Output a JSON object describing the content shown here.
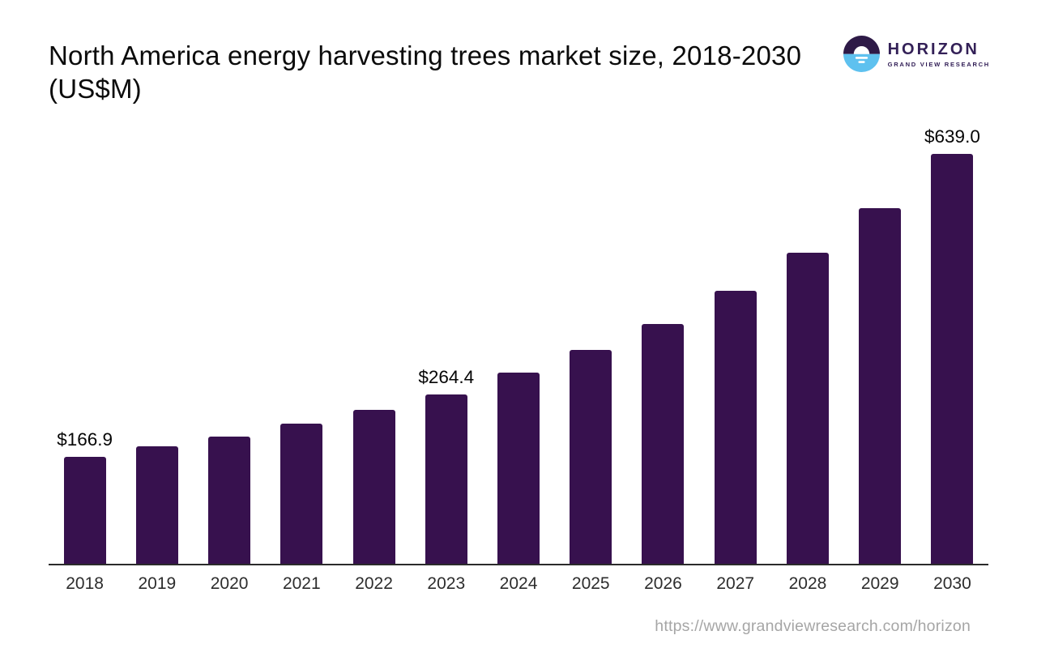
{
  "header": {
    "title": "North America energy harvesting trees market size, 2018-2030 (US$M)",
    "logo": {
      "brand": "HORIZON",
      "subtitle": "GRAND VIEW RESEARCH",
      "icon_colors": {
        "top_half": "#2e1a47",
        "bottom_half": "#5ec1ef",
        "sun": "#ffffff"
      }
    }
  },
  "chart_data": {
    "type": "bar",
    "title": "North America energy harvesting trees market size, 2018-2030 (US$M)",
    "categories": [
      "2018",
      "2019",
      "2020",
      "2021",
      "2022",
      "2023",
      "2024",
      "2025",
      "2026",
      "2027",
      "2028",
      "2029",
      "2030"
    ],
    "values": [
      166.9,
      183.0,
      198.0,
      218.0,
      239.5,
      264.4,
      297.5,
      334.0,
      374.0,
      426.0,
      485.0,
      554.0,
      639.0
    ],
    "data_labels": {
      "2018": "$166.9",
      "2023": "$264.4",
      "2030": "$639.0"
    },
    "labels_shown_for": [
      "2018",
      "2023",
      "2030"
    ],
    "bar_color": "#37114e",
    "axis_line_color": "#2b2b2b",
    "xlabel": "",
    "ylabel": "",
    "ylim": [
      0,
      660
    ],
    "grid": false,
    "legend_position": "none"
  },
  "footer": {
    "url": "https://www.grandviewresearch.com/horizon"
  }
}
